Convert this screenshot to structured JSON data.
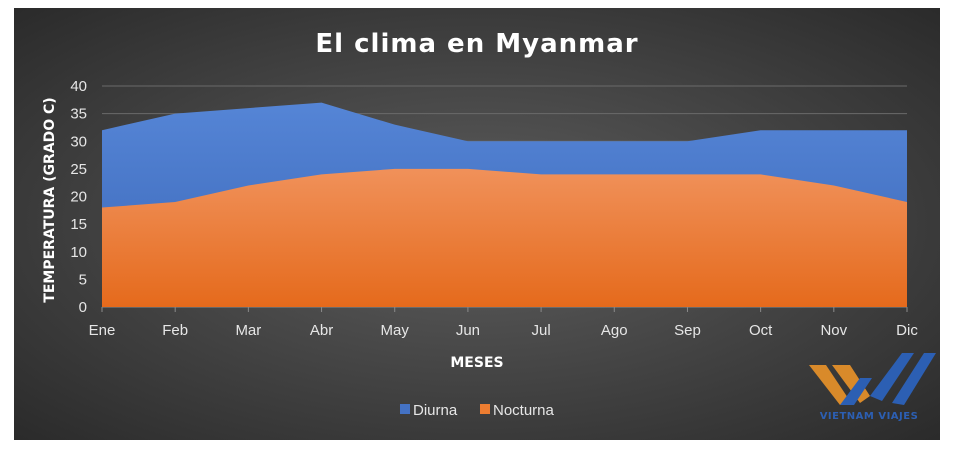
{
  "chart_data": {
    "type": "area",
    "title": "El clima en Myanmar",
    "xlabel": "MESES",
    "ylabel": "TEMPERATURA (GRADO C)",
    "categories": [
      "Ene",
      "Feb",
      "Mar",
      "Abr",
      "May",
      "Jun",
      "Jul",
      "Ago",
      "Sep",
      "Oct",
      "Nov",
      "Dic"
    ],
    "ylim": [
      0,
      40
    ],
    "yticks": [
      0,
      5,
      10,
      15,
      20,
      25,
      30,
      35,
      40
    ],
    "grid": true,
    "legend_position": "bottom",
    "series": [
      {
        "name": "Diurna",
        "color": "#4472c4",
        "values": [
          32,
          35,
          36,
          37,
          33,
          30,
          30,
          30,
          30,
          32,
          32,
          32
        ]
      },
      {
        "name": "Nocturna",
        "color": "#ed7d31",
        "values": [
          18,
          19,
          22,
          24,
          25,
          25,
          24,
          24,
          24,
          24,
          22,
          19
        ]
      }
    ]
  },
  "logo": {
    "text": "VIETNAM VIAJES",
    "colors": {
      "orange": "#d98a2a",
      "blue": "#2c5fb3"
    }
  }
}
